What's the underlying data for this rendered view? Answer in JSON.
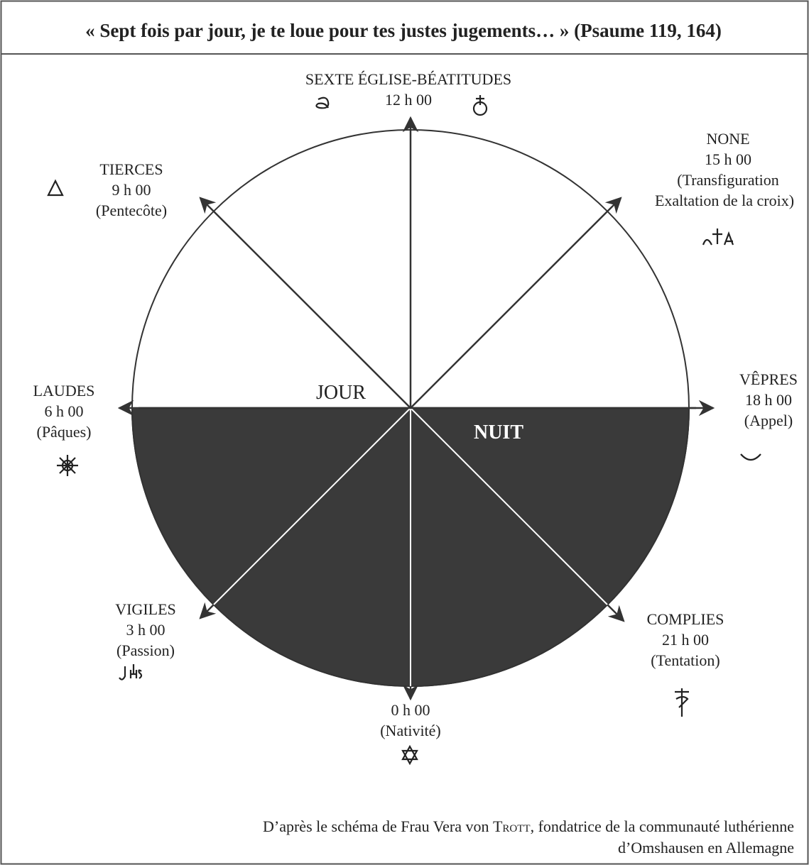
{
  "title": "« Sept fois par jour, je te loue pour tes justes jugements… » (Psaume 119, 164)",
  "halves": {
    "day": "JOUR",
    "night": "NUIT"
  },
  "nodes": [
    {
      "name": "SEXTE ÉGLISE-BÉATITUDES",
      "time": "12 h 00"
    },
    {
      "name": "NONE",
      "time": "15 h 00",
      "feast": [
        "(Transfiguration",
        "Exaltation de la croix)"
      ]
    },
    {
      "name": "VÊPRES",
      "time": "18 h 00",
      "feast": [
        "(Appel)"
      ]
    },
    {
      "name": "COMPLIES",
      "time": "21 h 00",
      "feast": [
        "(Tentation)"
      ]
    },
    {
      "time": "0 h 00",
      "feast": [
        "(Nativité)"
      ]
    },
    {
      "name": "VIGILES",
      "time": "3 h 00",
      "feast": [
        "(Passion)"
      ]
    },
    {
      "name": "LAUDES",
      "time": "6 h 00",
      "feast": [
        "(Pâques)"
      ]
    },
    {
      "name": "TIERCES",
      "time": "9 h 00",
      "feast": [
        "(Pentecôte)"
      ]
    }
  ],
  "caption": {
    "before": "D’après le schéma de Frau Vera von ",
    "name": "Trott",
    "after": ", fondatrice de la communauté luthérienne",
    "line2": "d’Omshausen en Allemagne"
  }
}
